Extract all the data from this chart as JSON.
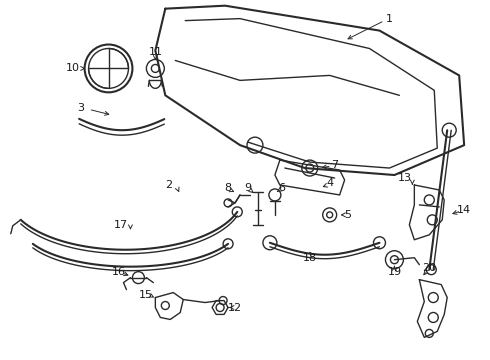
{
  "background_color": "#ffffff",
  "line_color": "#2a2a2a",
  "label_color": "#1a1a1a",
  "figsize": [
    4.9,
    3.6
  ],
  "dpi": 100
}
